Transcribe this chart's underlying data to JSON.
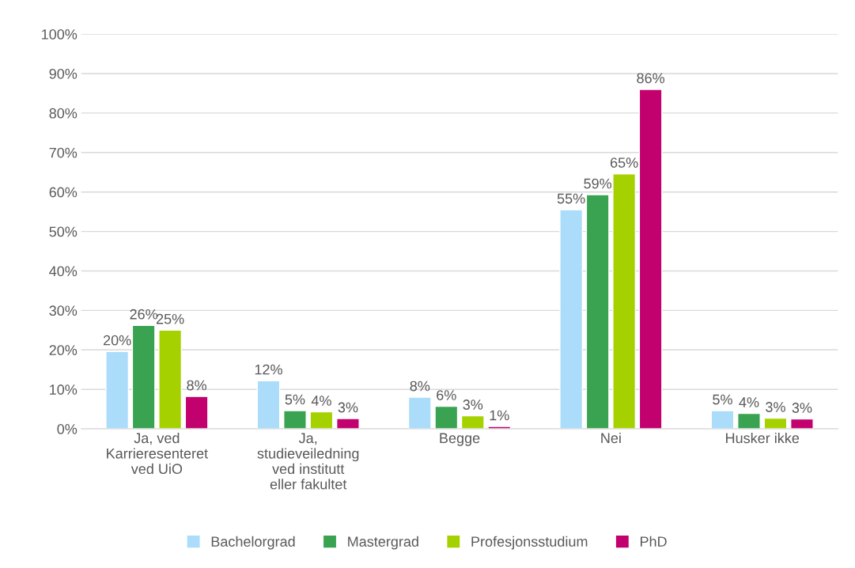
{
  "chart_data": {
    "type": "bar",
    "categories": [
      "Ja, ved Karrieresenteret ved UiO",
      "Ja, studieveiledning ved institutt eller fakultet",
      "Begge",
      "Nei",
      "Husker ikke"
    ],
    "series": [
      {
        "name": "Bachelorgrad",
        "color": "#abdcfa",
        "values": [
          19.6,
          12.2,
          8.0,
          55.5,
          4.6
        ],
        "value_labels": [
          "20%",
          "12%",
          "8%",
          "55%",
          "5%"
        ]
      },
      {
        "name": "Mastergrad",
        "color": "#3aa352",
        "values": [
          26.2,
          4.6,
          5.7,
          59.3,
          3.9
        ],
        "value_labels": [
          "26%",
          "5%",
          "6%",
          "59%",
          "4%"
        ]
      },
      {
        "name": "Profesjonsstudium",
        "color": "#a5d100",
        "values": [
          25.0,
          4.3,
          3.3,
          64.6,
          2.7
        ],
        "value_labels": [
          "25%",
          "4%",
          "3%",
          "65%",
          "3%"
        ]
      },
      {
        "name": "PhD",
        "color": "#c2006e",
        "values": [
          8.2,
          2.6,
          0.6,
          86.0,
          2.5
        ],
        "value_labels": [
          "8%",
          "3%",
          "1%",
          "86%",
          "3%"
        ]
      }
    ],
    "ylim": [
      0,
      100
    ],
    "yticks": [
      {
        "value": 0,
        "label": "0%"
      },
      {
        "value": 10,
        "label": "10%"
      },
      {
        "value": 20,
        "label": "20%"
      },
      {
        "value": 30,
        "label": "30%"
      },
      {
        "value": 40,
        "label": "40%"
      },
      {
        "value": 50,
        "label": "50%"
      },
      {
        "value": 60,
        "label": "60%"
      },
      {
        "value": 70,
        "label": "70%"
      },
      {
        "value": 80,
        "label": "80%"
      },
      {
        "value": 90,
        "label": "90%"
      },
      {
        "value": 100,
        "label": "100%"
      }
    ],
    "grid": "y",
    "legend": "bottom"
  }
}
